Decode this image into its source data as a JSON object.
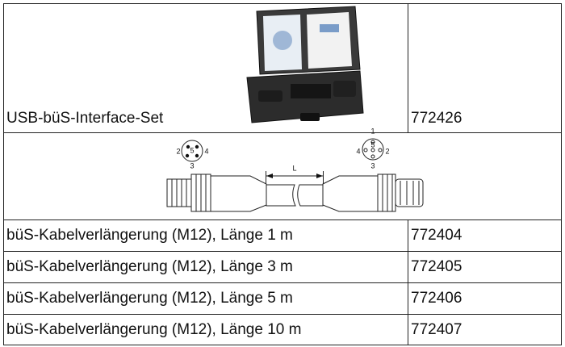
{
  "table": {
    "rows": [
      [
        "USB-büS-Interface-Set",
        "772426"
      ],
      [
        "büS-Kabelverlängerung (M12), Länge 1 m",
        "772404"
      ],
      [
        "büS-Kabelverlängerung (M12), Länge 3 m",
        "772405"
      ],
      [
        "büS-Kabelverlängerung (M12), Länge 5 m",
        "772406"
      ],
      [
        "büS-Kabelverlängerung (M12), Länge 10 m",
        "772407"
      ]
    ]
  },
  "diagram": {
    "left_pins": [
      "2",
      "5",
      "4",
      "3"
    ],
    "right_pins": [
      "1",
      "4",
      "5",
      "2",
      "3"
    ],
    "length_label": "L"
  }
}
